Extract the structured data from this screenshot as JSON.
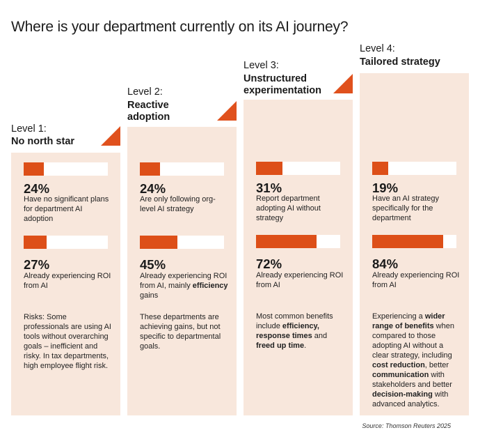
{
  "title": "Where is your department currently on its AI journey?",
  "source": "Source: Thomson Reuters 2025",
  "colors": {
    "accent": "#dd4f18",
    "panel": "#f8e7dc",
    "bar_track": "#ffffff"
  },
  "chart_data": {
    "type": "bar",
    "orientation": "horizontal",
    "xlim": [
      0,
      100
    ],
    "categories": [
      "Level 1: No north star",
      "Level 2: Reactive adoption",
      "Level 3: Unstructured experimentation",
      "Level 4: Tailored strategy"
    ],
    "series": [
      {
        "values": [
          24,
          24,
          31,
          19
        ]
      },
      {
        "values": [
          27,
          45,
          72,
          84
        ]
      }
    ]
  },
  "levels": [
    {
      "level": "Level 1:",
      "name": "No north star",
      "stat1": {
        "value": 24,
        "label": "24%",
        "text": "Have no significant plans for department AI adoption"
      },
      "stat2": {
        "value": 27,
        "label": "27%",
        "text": "Already experiencing ROI from AI"
      },
      "note": "Risks: Some professionals are using AI tools without overarching goals – inefficient and risky. In tax departments, high employee flight risk."
    },
    {
      "level": "Level 2:",
      "name": "Reactive adoption",
      "stat1": {
        "value": 24,
        "label": "24%",
        "text": "Are only following org-level AI strategy"
      },
      "stat2": {
        "value": 45,
        "label": "45%",
        "text_a": "Already experiencing ROI from AI, mainly ",
        "text_b": "efficiency",
        "text_c": " gains"
      },
      "note": "These departments are achieving gains, but not specific to departmental goals."
    },
    {
      "level": "Level 3:",
      "name": "Unstructured experimentation",
      "stat1": {
        "value": 31,
        "label": "31%",
        "text": "Report department adopting AI without strategy"
      },
      "stat2": {
        "value": 72,
        "label": "72%",
        "text": "Already experiencing ROI from AI"
      },
      "note": {
        "a": "Most common benefits include ",
        "b": "efficiency, response times",
        "c": " and ",
        "d": "freed up time",
        "e": "."
      }
    },
    {
      "level": "Level 4:",
      "name": "Tailored strategy",
      "stat1": {
        "value": 19,
        "label": "19%",
        "text": "Have an AI strategy specifically for the department"
      },
      "stat2": {
        "value": 84,
        "label": "84%",
        "text": "Already experiencing ROI from AI"
      },
      "note": {
        "a": "Experiencing a ",
        "b": "wider range of benefits",
        "c": " when compared to those adopting AI without a clear strategy, including ",
        "d": "cost reduction",
        "e": ", better ",
        "f": "communication",
        "g": " with stakeholders and better ",
        "h": "decision-making",
        "i": " with advanced analytics."
      }
    }
  ]
}
